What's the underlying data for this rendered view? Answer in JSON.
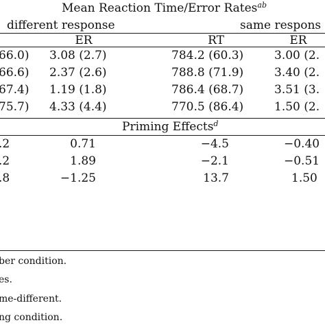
{
  "header": {
    "title_text": "Mean Reaction Time/Error Rates",
    "title_sup": "ab",
    "group_left": "different response",
    "group_right": "same respons",
    "col_er_left": "ER",
    "col_rt_right": "RT",
    "col_er_right": "ER"
  },
  "rows_top": [
    {
      "c0": "66.0)",
      "c1": "3.08 (2.7)",
      "c2": "784.2 (60.3)",
      "c3": "3.00 (2."
    },
    {
      "c0": "66.6)",
      "c1": "2.37 (2.6)",
      "c2": "788.8 (71.9)",
      "c3": "3.40 (2."
    },
    {
      "c0": "67.4)",
      "c1": "1.19 (1.8)",
      "c2": "786.4 (68.7)",
      "c3": "3.51 (3."
    },
    {
      "c0": "75.7)",
      "c1": "4.33 (4.4)",
      "c2": "770.5 (86.4)",
      "c3": "1.50 (2."
    }
  ],
  "priming": {
    "title_text": "Priming Effects",
    "title_sup": "d"
  },
  "rows_bottom": [
    {
      "c0": ".2",
      "c1": "0.71",
      "c2": "−4.5",
      "c3": "−0.40"
    },
    {
      "c0": ".2",
      "c1": "1.89",
      "c2": "−2.1",
      "c3": "−0.51"
    },
    {
      "c0": ".8",
      "c1": "−1.25",
      "c2": "13.7",
      "c3": "1.50"
    }
  ],
  "footnotes": [
    "ber condition.",
    "es.",
    "me-different.",
    "ng condition."
  ]
}
